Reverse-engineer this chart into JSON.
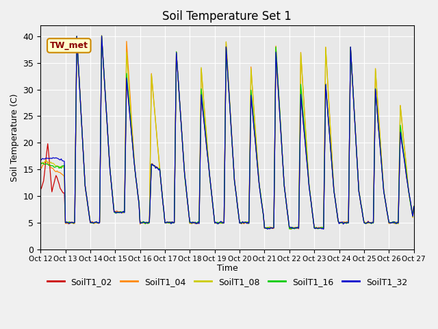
{
  "title": "Soil Temperature Set 1",
  "ylabel": "Soil Temperature (C)",
  "xlabel": "Time",
  "ylim": [
    0,
    42
  ],
  "xlim": [
    0,
    360
  ],
  "background_color": "#e8e8e8",
  "figure_color": "#f0f0f0",
  "annotation_text": "TW_met",
  "series_colors": {
    "SoilT1_02": "#cc0000",
    "SoilT1_04": "#ff8800",
    "SoilT1_08": "#cccc00",
    "SoilT1_16": "#00cc00",
    "SoilT1_32": "#0000cc"
  },
  "xtick_labels": [
    "Oct 12",
    "Oct 13",
    "Oct 14",
    "Oct 15",
    "Oct 16",
    "Oct 17",
    "Oct 18",
    "Oct 19",
    "Oct 20",
    "Oct 21",
    "Oct 22",
    "Oct 23",
    "Oct 24",
    "Oct 25",
    "Oct 26",
    "Oct 27"
  ],
  "xtick_positions": [
    0,
    24,
    48,
    72,
    96,
    120,
    144,
    168,
    192,
    216,
    240,
    264,
    288,
    312,
    336,
    360
  ],
  "ytick_labels": [
    "0",
    "5",
    "10",
    "15",
    "20",
    "25",
    "30",
    "35",
    "40"
  ],
  "ytick_positions": [
    0,
    5,
    10,
    15,
    20,
    25,
    30,
    35,
    40
  ],
  "day_peaks_32": [
    40,
    40,
    32,
    16,
    37,
    29,
    38,
    29,
    37,
    29,
    31,
    38,
    30,
    22,
    8
  ],
  "day_peaks_16": [
    40,
    40,
    33,
    16,
    37,
    30,
    38,
    30,
    38,
    31,
    31,
    38,
    30,
    23,
    8
  ],
  "day_peaks_08": [
    40,
    40,
    37,
    33,
    37,
    34,
    39,
    34,
    38,
    37,
    38,
    38,
    34,
    27,
    9
  ],
  "day_peaks_04": [
    40,
    40,
    39,
    33,
    37,
    34,
    39,
    34,
    38,
    37,
    38,
    38,
    34,
    27,
    9
  ],
  "day_valleys": [
    5,
    5,
    7,
    5,
    5,
    5,
    5,
    5,
    4,
    4,
    4,
    5,
    5,
    5,
    8
  ],
  "day_mid_descent": [
    12,
    15,
    15,
    15,
    14,
    14,
    13,
    12,
    12,
    12,
    11,
    11,
    11,
    11,
    9
  ]
}
